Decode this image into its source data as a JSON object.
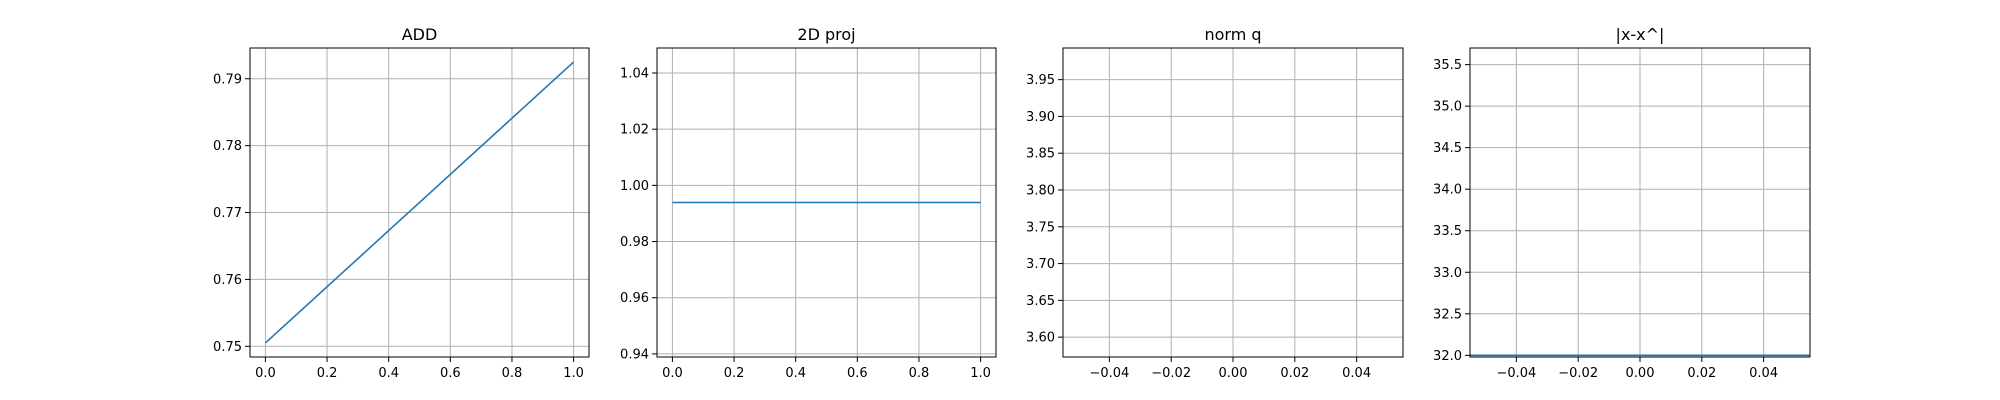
{
  "chart_data": [
    {
      "type": "line",
      "title": "ADD",
      "xlabel": "",
      "ylabel": "",
      "grid": true,
      "color": "#1f77b4",
      "xlim": [
        -0.05,
        1.05
      ],
      "ylim": [
        0.7484,
        0.7946
      ],
      "xticks": [
        0.0,
        0.2,
        0.4,
        0.6,
        0.8,
        1.0
      ],
      "xtick_labels": [
        "0.0",
        "0.2",
        "0.4",
        "0.6",
        "0.8",
        "1.0"
      ],
      "yticks": [
        0.75,
        0.76,
        0.77,
        0.78,
        0.79
      ],
      "ytick_labels": [
        "0.75",
        "0.76",
        "0.77",
        "0.78",
        "0.79"
      ],
      "series": [
        {
          "x": [
            0,
            1
          ],
          "y": [
            0.7505,
            0.7925
          ]
        }
      ]
    },
    {
      "type": "line",
      "title": "2D proj",
      "xlabel": "",
      "ylabel": "",
      "grid": true,
      "color": "#1f77b4",
      "xlim": [
        -0.05,
        1.05
      ],
      "ylim": [
        0.9389,
        1.0489
      ],
      "xticks": [
        0.0,
        0.2,
        0.4,
        0.6,
        0.8,
        1.0
      ],
      "xtick_labels": [
        "0.0",
        "0.2",
        "0.4",
        "0.6",
        "0.8",
        "1.0"
      ],
      "yticks": [
        0.94,
        0.96,
        0.98,
        1.0,
        1.02,
        1.04
      ],
      "ytick_labels": [
        "0.94",
        "0.96",
        "0.98",
        "1.00",
        "1.02",
        "1.04"
      ],
      "series": [
        {
          "x": [
            0,
            1
          ],
          "y": [
            0.9939,
            0.9939
          ]
        }
      ]
    },
    {
      "type": "line",
      "title": "norm q",
      "xlabel": "",
      "ylabel": "",
      "grid": true,
      "color": "#1f77b4",
      "xlim": [
        -0.055,
        0.055
      ],
      "ylim": [
        3.573,
        3.993
      ],
      "xticks": [
        -0.04,
        -0.02,
        0.0,
        0.02,
        0.04
      ],
      "xtick_labels": [
        "−0.04",
        "−0.02",
        "0.00",
        "0.02",
        "0.04"
      ],
      "yticks": [
        3.6,
        3.65,
        3.7,
        3.75,
        3.8,
        3.85,
        3.9,
        3.95
      ],
      "ytick_labels": [
        "3.60",
        "3.65",
        "3.70",
        "3.75",
        "3.80",
        "3.85",
        "3.90",
        "3.95"
      ],
      "series": []
    },
    {
      "type": "line",
      "title": "|x-x^|",
      "xlabel": "",
      "ylabel": "",
      "grid": true,
      "color": "#1f77b4",
      "xlim": [
        -0.055,
        0.055
      ],
      "ylim": [
        31.98,
        35.7
      ],
      "xticks": [
        -0.04,
        -0.02,
        0.0,
        0.02,
        0.04
      ],
      "xtick_labels": [
        "−0.04",
        "−0.02",
        "0.00",
        "0.02",
        "0.04"
      ],
      "yticks": [
        32.0,
        32.5,
        33.0,
        33.5,
        34.0,
        34.5,
        35.0,
        35.5
      ],
      "ytick_labels": [
        "32.0",
        "32.5",
        "33.0",
        "33.5",
        "34.0",
        "34.5",
        "35.0",
        "35.5"
      ],
      "series": [
        {
          "x": [
            -0.055,
            0.055
          ],
          "y": [
            32.0,
            32.0
          ]
        }
      ]
    }
  ]
}
